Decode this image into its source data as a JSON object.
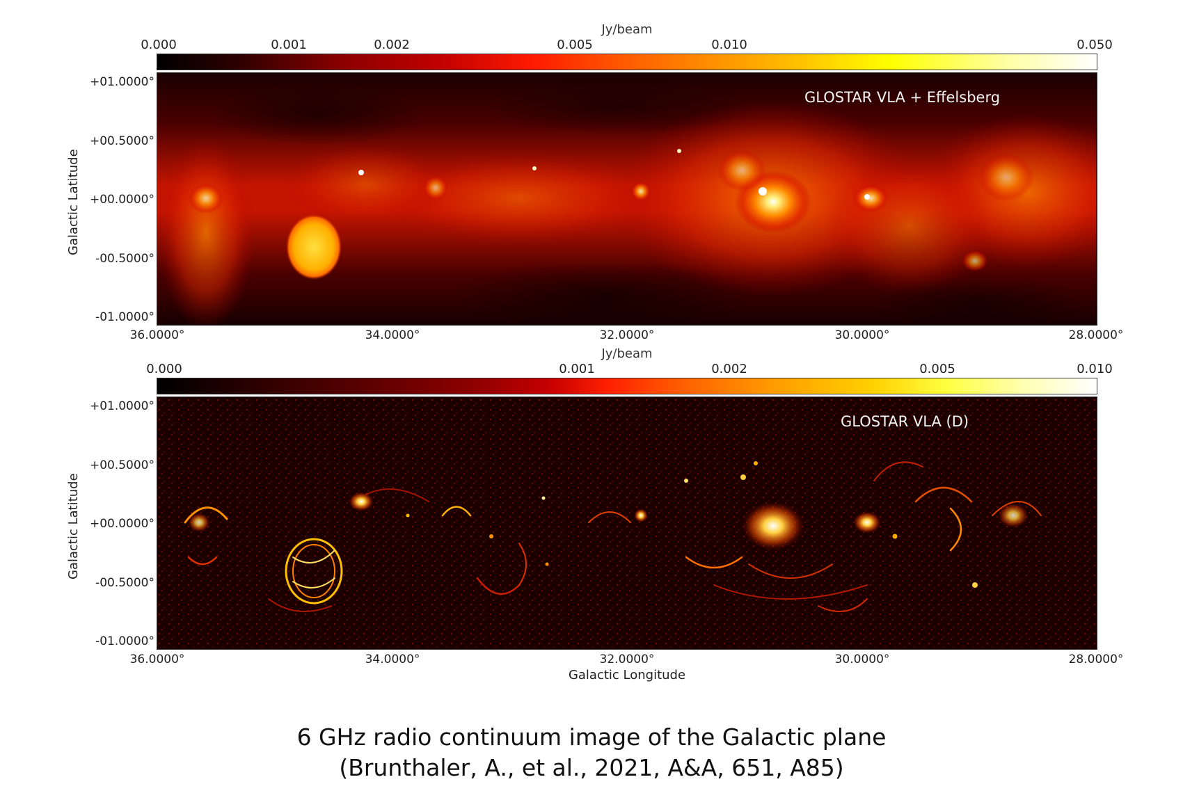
{
  "top_panel": {
    "colorbar_unit": "Jy/beam",
    "colorbar_ticks": [
      "0.000",
      "0.001",
      "0.002",
      "0.005",
      "0.010",
      "0.050"
    ],
    "label": "GLOSTAR VLA + Effelsberg",
    "ylabel": "Galactic Latitude",
    "yticks": [
      "+01.0000°",
      "+00.5000°",
      "+00.0000°",
      "-00.5000°",
      "-01.0000°"
    ],
    "xticks": [
      "36.0000°",
      "34.0000°",
      "32.0000°",
      "30.0000°",
      "28.0000°"
    ]
  },
  "bottom_panel": {
    "colorbar_unit": "Jy/beam",
    "colorbar_ticks": [
      "0.000",
      "0.001",
      "0.002",
      "0.005",
      "0.010"
    ],
    "label": "GLOSTAR VLA (D)",
    "ylabel": "Galactic Latitude",
    "yticks": [
      "+01.0000°",
      "+00.5000°",
      "+00.0000°",
      "-00.5000°",
      "-01.0000°"
    ],
    "xticks": [
      "36.0000°",
      "34.0000°",
      "32.0000°",
      "30.0000°",
      "28.0000°"
    ],
    "xlabel": "Galactic Longitude"
  },
  "caption": {
    "line1": "6 GHz radio continuum image of the Galactic plane",
    "line2": "(Brunthaler, A., et al., 2021, A&A, 651, A85)"
  },
  "colors": {
    "colormap": [
      "#000000",
      "#8e0000",
      "#ff1a00",
      "#ff8a00",
      "#ffff00",
      "#ffffff"
    ],
    "label_text": "#f4f4f4"
  }
}
